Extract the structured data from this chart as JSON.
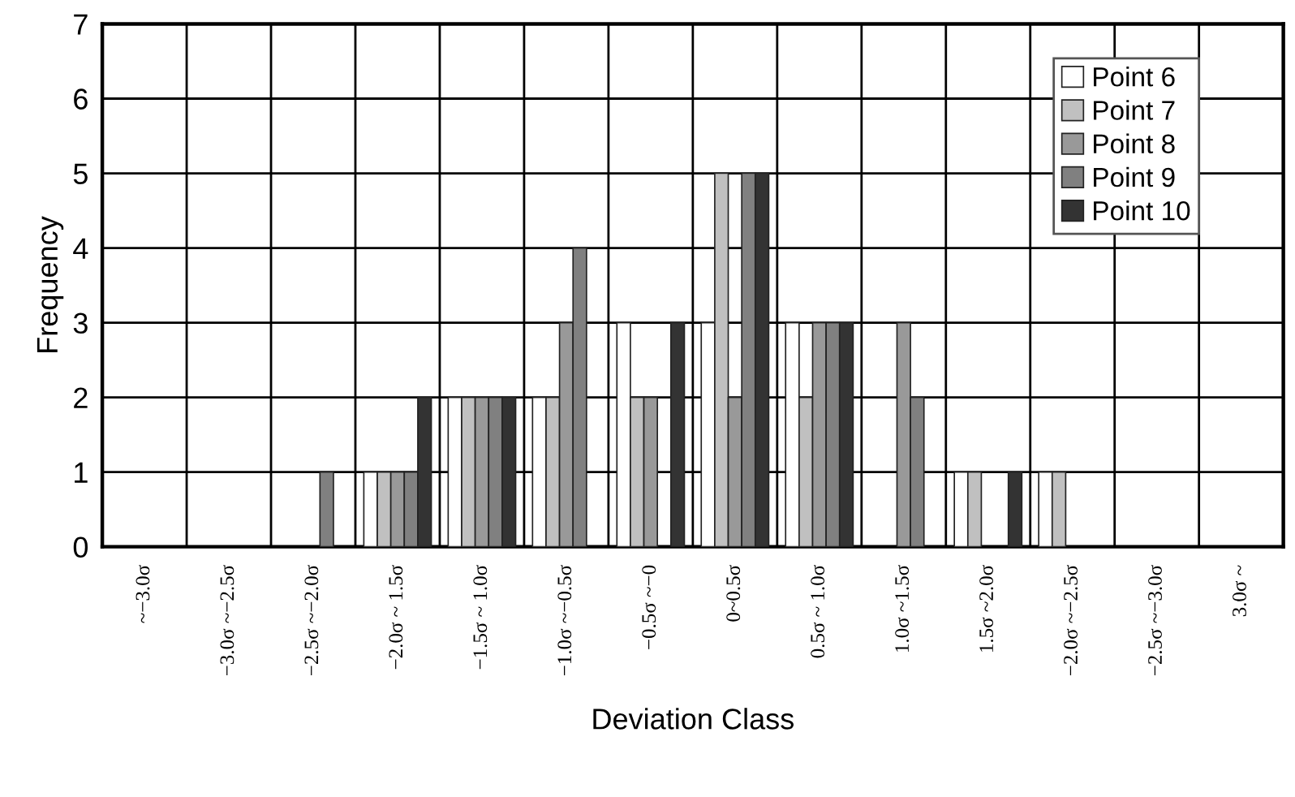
{
  "chart_data": {
    "type": "bar",
    "xlabel": "Deviation Class",
    "ylabel": "Frequency",
    "categories": [
      "~−3.0σ",
      "−3.0σ ~−2.5σ",
      "−2.5σ ~−2.0σ",
      "−2.0σ ~ 1.5σ",
      "−1.5σ ~ 1.0σ",
      "−1.0σ ~−0.5σ",
      "−0.5σ ~−0",
      "0~0.5σ",
      "0.5σ ~ 1.0σ",
      "1.0σ ~1.5σ",
      "1.5σ ~2.0σ",
      "−2.0σ ~−2.5σ",
      "−2.5σ ~−3.0σ",
      "3.0σ ~"
    ],
    "series": [
      {
        "name": "Point 6",
        "color": "#ffffff",
        "values": [
          0,
          0,
          0,
          1,
          2,
          2,
          3,
          3,
          3,
          0,
          1,
          1,
          0,
          0
        ]
      },
      {
        "name": "Point 7",
        "color": "#c0c0c0",
        "values": [
          0,
          0,
          0,
          1,
          2,
          2,
          2,
          5,
          2,
          0,
          1,
          1,
          0,
          0
        ]
      },
      {
        "name": "Point 8",
        "color": "#999999",
        "values": [
          0,
          0,
          0,
          1,
          2,
          3,
          2,
          2,
          3,
          3,
          0,
          0,
          0,
          0
        ]
      },
      {
        "name": "Point 9",
        "color": "#808080",
        "values": [
          0,
          0,
          1,
          1,
          2,
          4,
          0,
          5,
          3,
          2,
          0,
          0,
          0,
          0
        ]
      },
      {
        "name": "Point 10",
        "color": "#333333",
        "values": [
          0,
          0,
          0,
          2,
          2,
          0,
          3,
          5,
          3,
          0,
          1,
          0,
          0,
          0
        ]
      }
    ],
    "ylim": [
      0,
      7
    ],
    "yticks": [
      0,
      1,
      2,
      3,
      4,
      5,
      6,
      7
    ],
    "grid": true,
    "legend": "top right"
  }
}
